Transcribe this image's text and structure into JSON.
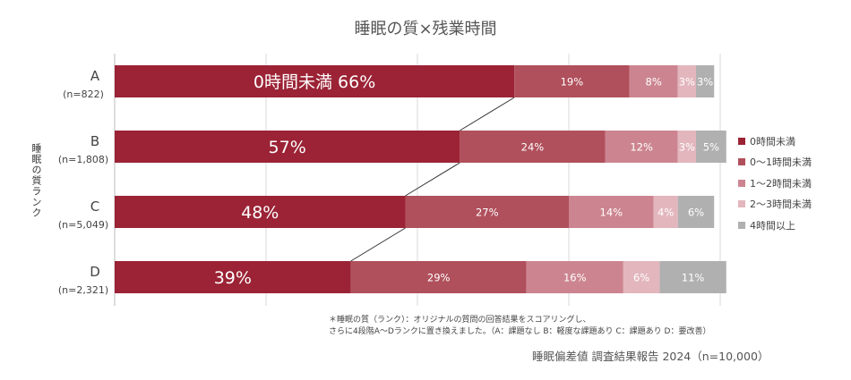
{
  "title": "睡眠の質×残業時間",
  "chart_data": {
    "type": "bar",
    "orientation": "horizontal",
    "stacked": true,
    "percent": true,
    "title": "睡眠の質×残業時間",
    "ylabel": "睡眠の質ランク",
    "xlim": [
      0,
      100
    ],
    "categories": [
      {
        "rank": "A",
        "n": "(n=822)"
      },
      {
        "rank": "B",
        "n": "(n=1,808)"
      },
      {
        "rank": "C",
        "n": "(n=5,049)"
      },
      {
        "rank": "D",
        "n": "(n=2,321)"
      }
    ],
    "series": [
      {
        "name": "0時間未満",
        "color": "#9b2335",
        "values": [
          66,
          57,
          48,
          39
        ]
      },
      {
        "name": "0～1時間未満",
        "color": "#b0505c",
        "values": [
          19,
          24,
          27,
          29
        ]
      },
      {
        "name": "1～2時間未満",
        "color": "#cc8590",
        "values": [
          8,
          12,
          14,
          16
        ]
      },
      {
        "name": "2～3時間未満",
        "color": "#e3b6bd",
        "values": [
          3,
          3,
          4,
          6
        ]
      },
      {
        "name": "4時間以上",
        "color": "#b0b0b0",
        "values": [
          3,
          5,
          6,
          11
        ]
      }
    ],
    "first_bar_label_prefix": "0時間未満",
    "legend_position": "right",
    "grid": true
  },
  "note": [
    "＊睡眠の質（ランク）：オリジナルの質問の回答結果をスコアリングし、",
    "さらに4段階A～Dランクに置き換えました。（A：課題なし B：軽度な課題あり C：課題あり D：要改善）"
  ],
  "source": "睡眠偏差値 調査結果報告 2024（n=10,000）"
}
